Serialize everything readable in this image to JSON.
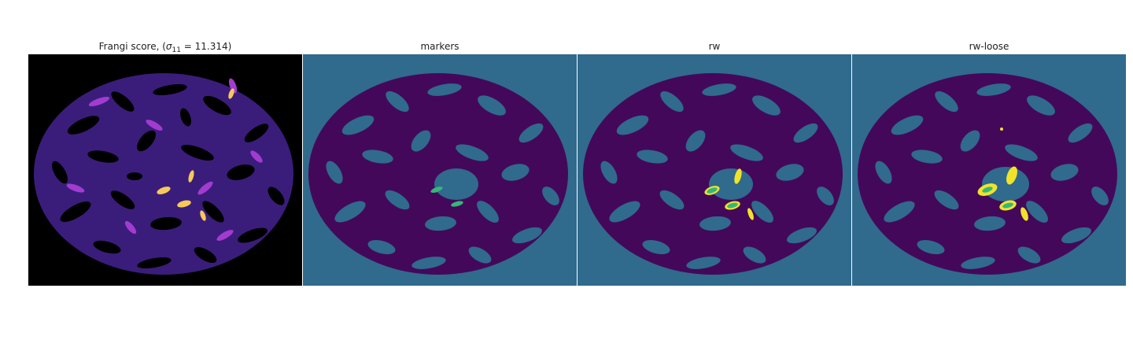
{
  "panels": [
    {
      "title_prefix": "Frangi score, (",
      "title_sigma": "σ",
      "title_sub": "11",
      "title_suffix": " = 11.314)",
      "colormap": "magma",
      "colors": {
        "background": "#000000",
        "region": "#3a1d7a",
        "highlight": "#a23bd0",
        "hot": "#f7c95a"
      }
    },
    {
      "title": "markers",
      "colormap": "viridis",
      "colors": {
        "background": "#306a8d",
        "region": "#44085a",
        "marker": "#35b779"
      }
    },
    {
      "title": "rw",
      "colormap": "viridis",
      "colors": {
        "background": "#306a8d",
        "region": "#44085a",
        "marker": "#35b779",
        "segment": "#f0e32a"
      }
    },
    {
      "title": "rw-loose",
      "colormap": "viridis",
      "colors": {
        "background": "#306a8d",
        "region": "#44085a",
        "marker": "#35b779",
        "segment": "#f0e32a"
      }
    }
  ]
}
